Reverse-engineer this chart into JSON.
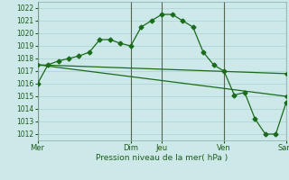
{
  "title": "",
  "xlabel": "Pression niveau de la mer( hPa )",
  "ylim": [
    1011.5,
    1022.5
  ],
  "yticks": [
    1012,
    1013,
    1014,
    1015,
    1016,
    1017,
    1018,
    1019,
    1020,
    1021,
    1022
  ],
  "bg_color": "#cce8e8",
  "grid_major_color": "#b0d4d4",
  "grid_minor_color": "#c0e0e0",
  "line_color": "#1a6b1a",
  "day_labels": [
    "Mer",
    "Dim",
    "Jeu",
    "Ven",
    "Sam"
  ],
  "day_positions": [
    0,
    9,
    12,
    18,
    24
  ],
  "xlim": [
    0,
    24
  ],
  "series1": {
    "x": [
      0,
      1,
      2,
      3,
      4,
      5,
      6,
      7,
      8,
      9,
      10,
      11,
      12,
      13,
      14,
      15,
      16,
      17,
      18,
      19,
      20,
      21,
      22,
      23,
      24
    ],
    "y": [
      1016.0,
      1017.5,
      1017.8,
      1018.0,
      1018.2,
      1018.5,
      1019.5,
      1019.5,
      1019.2,
      1019.0,
      1020.5,
      1021.0,
      1021.5,
      1021.5,
      1021.0,
      1020.5,
      1018.5,
      1017.5,
      1017.0,
      1015.1,
      1015.3,
      1013.2,
      1012.0,
      1012.0,
      1014.5
    ]
  },
  "series2": {
    "x": [
      0,
      24
    ],
    "y": [
      1017.5,
      1016.8
    ]
  },
  "series3": {
    "x": [
      0,
      24
    ],
    "y": [
      1017.5,
      1015.0
    ]
  }
}
